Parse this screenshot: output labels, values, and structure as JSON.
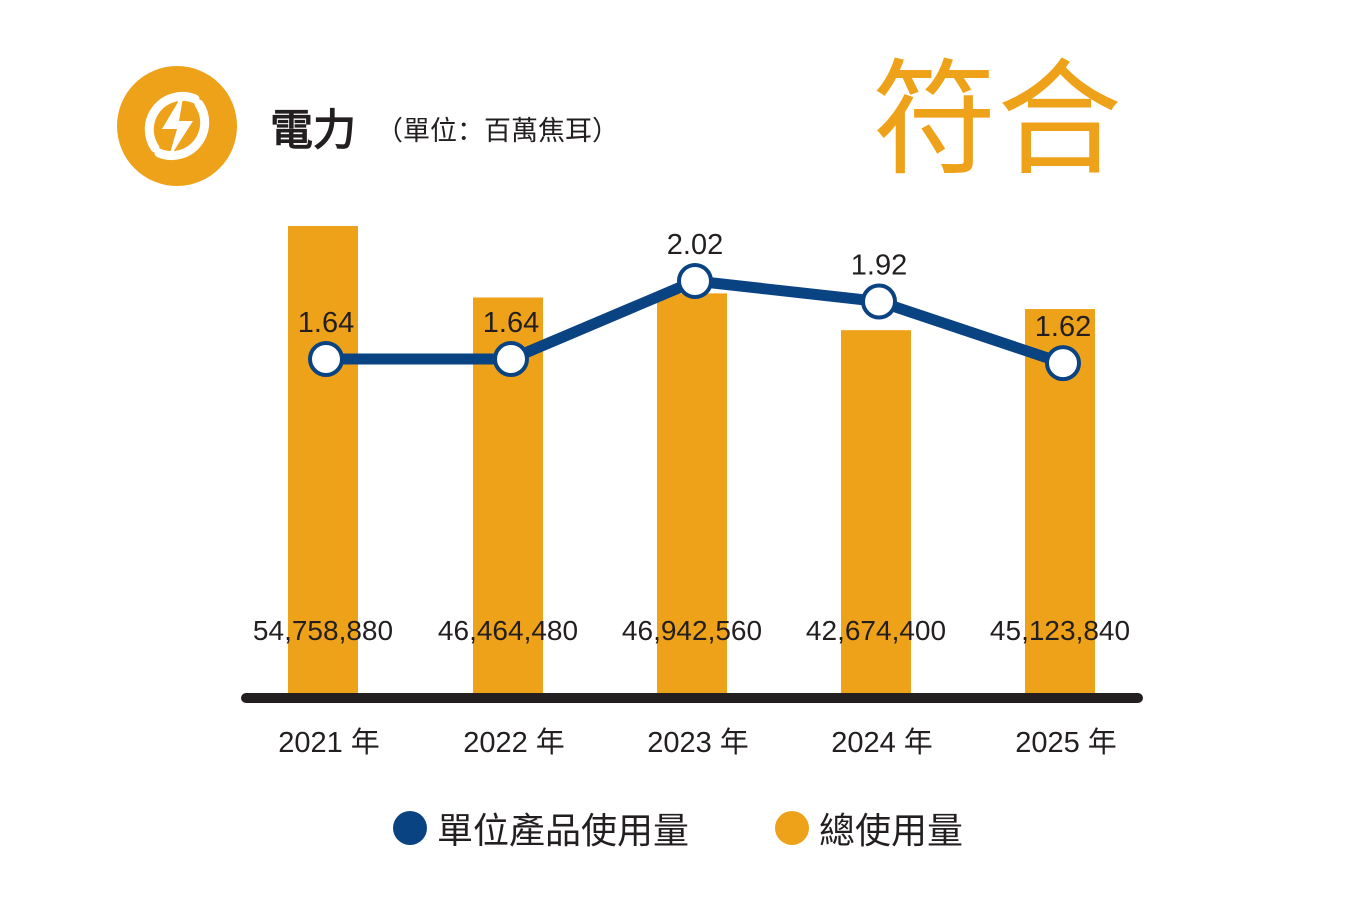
{
  "header": {
    "icon": "lightning-bolt-icon",
    "title": "電力",
    "unit": "（單位：百萬焦耳）",
    "status": "符合"
  },
  "colors": {
    "accent": "#eea21a",
    "bar": "#eea21a",
    "line": "#0a4382",
    "text": "#231f20"
  },
  "chart_data": {
    "type": "bar",
    "categories": [
      "2021 年",
      "2022 年",
      "2023 年",
      "2024 年",
      "2025 年"
    ],
    "series": [
      {
        "name": "總使用量",
        "type": "bar",
        "values": [
          54758880,
          46464480,
          46942560,
          42674400,
          45123840
        ],
        "labels": [
          "54,758,880",
          "46,464,480",
          "46,942,560",
          "42,674,400",
          "45,123,840"
        ]
      },
      {
        "name": "單位產品使用量",
        "type": "line",
        "values": [
          1.64,
          1.64,
          2.02,
          1.92,
          1.62
        ],
        "labels": [
          "1.64",
          "1.64",
          "2.02",
          "1.92",
          "1.62"
        ]
      }
    ],
    "legend_position": "bottom-center",
    "grid": false
  },
  "legend": {
    "line_label": "單位產品使用量",
    "bar_label": "總使用量"
  }
}
